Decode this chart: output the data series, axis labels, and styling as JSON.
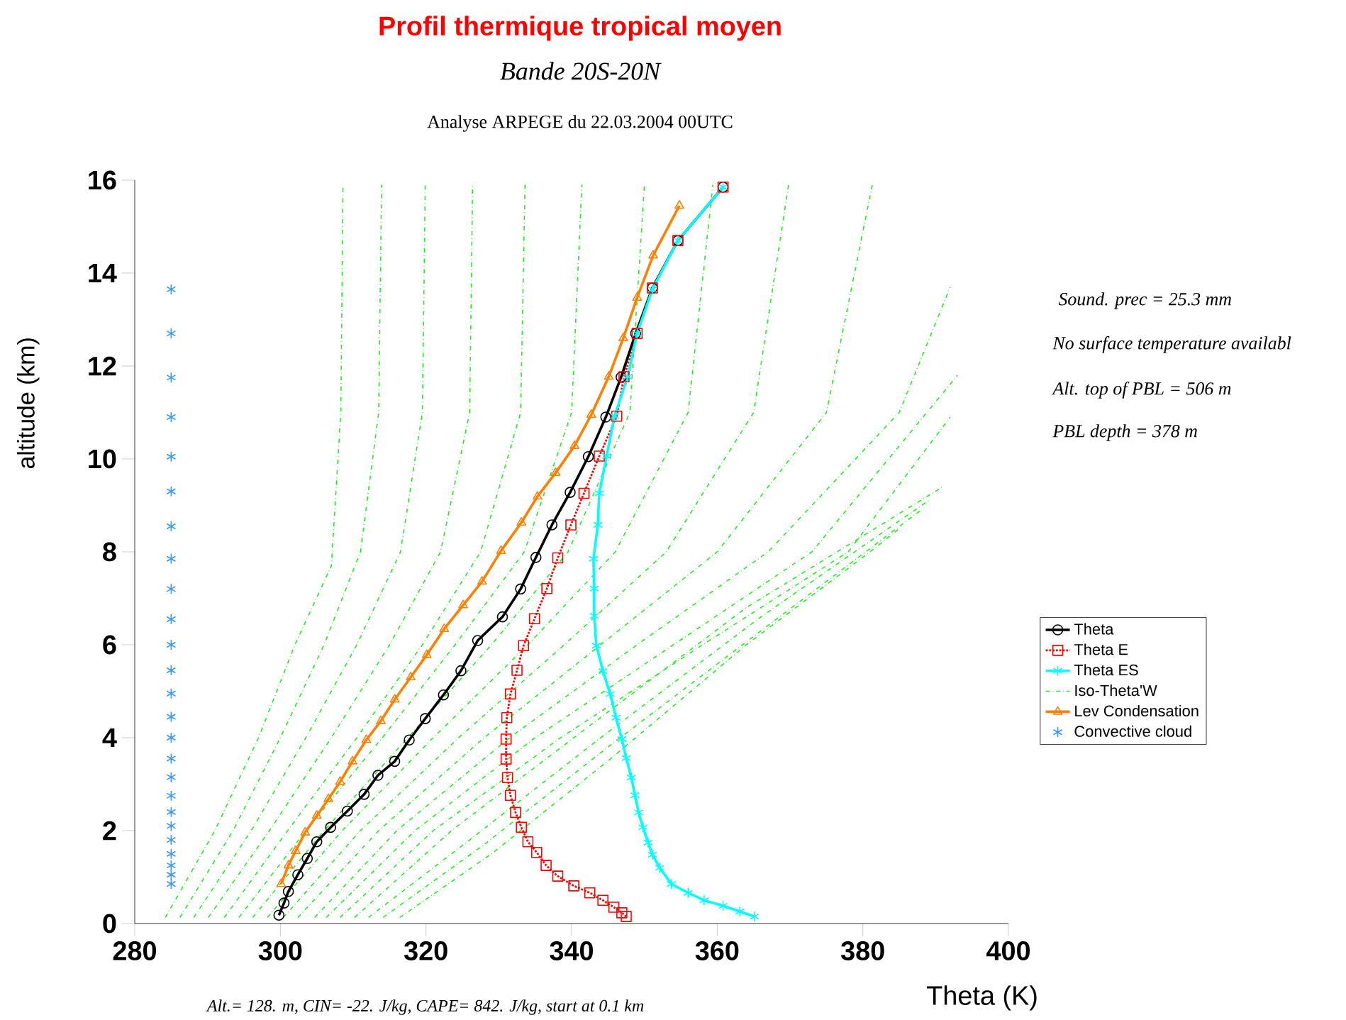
{
  "chart_data": {
    "type": "line",
    "title": "Profil thermique tropical moyen",
    "subtitle": "Bande 20S-20N",
    "xlabel": "Theta (K)",
    "ylabel": "altitude (km)",
    "annotations": [
      "Analyse ARPEGE du 22.03.2004 00UTC",
      "Sound. prec =  25.3 mm",
      "No surface temperature availabl",
      "Alt. top of PBL =   506 m",
      "PBL depth =   378 m",
      "Alt.= 128. m, CIN= -22. J/kg, CAPE= 842. J/kg, start at 0.1 km"
    ],
    "xlim": [
      280,
      400
    ],
    "xticks": [
      280,
      300,
      320,
      340,
      360,
      380,
      400
    ],
    "ylim": [
      0,
      16
    ],
    "yticks": [
      0,
      2,
      4,
      6,
      8,
      10,
      12,
      14,
      16
    ],
    "legend": "right",
    "series": [
      {
        "name": "Theta",
        "color": "#000000",
        "marker": "circle",
        "line_style": "solid",
        "x": [
          299.8,
          300.5,
          301.1,
          302.4,
          303.7,
          305,
          306.9,
          309.2,
          311.5,
          313.4,
          315.7,
          317.7,
          319.9,
          322.4,
          324.8,
          327.1,
          330.5,
          333,
          335.1,
          337.3,
          339.8,
          342.3,
          344.7,
          346.8,
          348.8,
          351.1,
          354.6,
          360.8
        ],
        "values": [
          0.18,
          0.44,
          0.69,
          1.05,
          1.4,
          1.76,
          2.07,
          2.42,
          2.78,
          3.19,
          3.49,
          3.95,
          4.41,
          4.92,
          5.44,
          6.09,
          6.6,
          7.2,
          7.88,
          8.58,
          9.28,
          10.05,
          10.9,
          11.76,
          12.7,
          13.68,
          14.7,
          15.85
        ]
      },
      {
        "name": "Theta E",
        "color": "#ff0000",
        "marker": "square",
        "line_style": "dotted",
        "x": [
          347.5,
          346.9,
          345.8,
          344.3,
          342.5,
          340.3,
          338.1,
          336.5,
          335.2,
          334,
          333.1,
          332.3,
          331.6,
          331.2,
          331,
          331,
          331.1,
          331.6,
          332.5,
          333.4,
          334.9,
          336.6,
          338.1,
          339.9,
          341.7,
          343.8,
          346.2,
          347.2,
          349,
          351.1,
          354.6,
          360.8
        ],
        "values": [
          0.15,
          0.23,
          0.35,
          0.5,
          0.66,
          0.81,
          1.02,
          1.25,
          1.53,
          1.76,
          2.07,
          2.39,
          2.76,
          3.14,
          3.54,
          3.97,
          4.43,
          4.94,
          5.45,
          5.98,
          6.56,
          7.21,
          7.87,
          8.58,
          9.26,
          10.06,
          10.92,
          11.77,
          12.7,
          13.68,
          14.7,
          15.85
        ]
      },
      {
        "name": "Theta ES",
        "color": "#00ffff",
        "marker": "cross",
        "line_style": "solid",
        "x": [
          365.1,
          363.1,
          360.8,
          358.2,
          356,
          353.7,
          352.1,
          351.1,
          350.5,
          349.8,
          349.2,
          348.7,
          348.2,
          347.5,
          346.9,
          346.1,
          345.3,
          344.3,
          343.4,
          343.1,
          343.1,
          343,
          343.6,
          343.8,
          344.8,
          345.9,
          347.7,
          349,
          351.1,
          354.6,
          360.8
        ],
        "values": [
          0.15,
          0.26,
          0.38,
          0.5,
          0.66,
          0.85,
          1.2,
          1.48,
          1.74,
          2.07,
          2.39,
          2.76,
          3.14,
          3.56,
          3.97,
          4.43,
          4.94,
          5.43,
          5.98,
          6.62,
          7.21,
          7.85,
          8.58,
          9.26,
          10.06,
          10.92,
          11.77,
          12.7,
          13.65,
          14.7,
          15.85
        ]
      },
      {
        "name": "Iso-Theta'W",
        "color": "#22ee22",
        "marker": "none",
        "line_style": "dashed",
        "x": [
          284.2,
          291,
          297,
          302,
          307,
          308.3,
          308.6
        ],
        "values": [
          0.13,
          2,
          4,
          6,
          7.7,
          11,
          15.9
        ]
      },
      {
        "name": "Lev Condensation",
        "color": "#ff8000",
        "marker": "triangle",
        "line_style": "solid",
        "x": [
          300.1,
          301.1,
          302.1,
          303.4,
          305,
          306.6,
          308.2,
          309.9,
          311.8,
          313.8,
          315.7,
          317.9,
          320.1,
          322.5,
          325.1,
          327.7,
          330.3,
          333.1,
          335.3,
          337.8,
          340.4,
          342.7,
          345.1,
          347.1,
          349,
          351.2,
          354.8
        ],
        "values": [
          0.85,
          1.25,
          1.56,
          1.96,
          2.32,
          2.68,
          3.05,
          3.49,
          3.95,
          4.36,
          4.82,
          5.3,
          5.78,
          6.34,
          6.85,
          7.36,
          8.02,
          8.63,
          9.19,
          9.7,
          10.28,
          10.95,
          11.77,
          12.6,
          13.47,
          14.38,
          15.45
        ]
      },
      {
        "name": "Convective cloud",
        "type": "scatter",
        "color": "#3399ff",
        "marker": "cross",
        "x": [
          285,
          285,
          285,
          285,
          285,
          285,
          285,
          285,
          285,
          285,
          285,
          285,
          285,
          285,
          285,
          285,
          285,
          285,
          285,
          285,
          285,
          285,
          285,
          285,
          285
        ],
        "values": [
          0.85,
          1.05,
          1.25,
          1.5,
          1.8,
          2.1,
          2.4,
          2.75,
          3.15,
          3.55,
          4.0,
          4.45,
          4.95,
          5.45,
          6.0,
          6.55,
          7.2,
          7.85,
          8.55,
          9.3,
          10.05,
          10.9,
          11.75,
          12.7,
          13.65
        ]
      },
      {
        "color": "#22ee22",
        "marker": "none",
        "line_style": "dashed",
        "x": [
          286.2,
          293.5,
          300,
          306,
          311,
          313.5,
          313.9
        ],
        "values": [
          0.13,
          2,
          4,
          6,
          8,
          11,
          15.9
        ]
      },
      {
        "color": "#22ee22",
        "marker": "none",
        "line_style": "dashed",
        "x": [
          288.1,
          296,
          303.5,
          310.5,
          316.5,
          319.5,
          319.9
        ],
        "values": [
          0.13,
          2,
          4,
          6,
          8,
          11,
          15.9
        ]
      },
      {
        "color": "#22ee22",
        "marker": "none",
        "line_style": "dashed",
        "x": [
          290.1,
          298.5,
          307,
          315,
          322,
          326,
          326.4
        ],
        "values": [
          0.13,
          2,
          4,
          6,
          8,
          11,
          15.9
        ]
      },
      {
        "color": "#22ee22",
        "marker": "none",
        "line_style": "dashed",
        "x": [
          292.3,
          301,
          310.5,
          319.5,
          327.5,
          333,
          333.6
        ],
        "values": [
          0.13,
          2,
          4,
          6,
          8,
          11,
          15.9
        ]
      },
      {
        "color": "#22ee22",
        "marker": "none",
        "line_style": "dashed",
        "x": [
          294.3,
          303.5,
          314,
          324,
          333.5,
          340,
          341.4
        ],
        "values": [
          0.13,
          2,
          4,
          6,
          8,
          11,
          15.9
        ]
      },
      {
        "color": "#22ee22",
        "marker": "none",
        "line_style": "dashed",
        "x": [
          296.2,
          306,
          317.5,
          329,
          339.5,
          348,
          350
        ],
        "values": [
          0.13,
          2,
          4,
          6,
          8,
          11,
          15.9
        ]
      },
      {
        "color": "#22ee22",
        "marker": "none",
        "line_style": "dashed",
        "x": [
          298.2,
          308.5,
          321,
          334,
          346,
          356,
          359.4
        ],
        "values": [
          0.13,
          2,
          4,
          6,
          8,
          11,
          15.9
        ]
      },
      {
        "color": "#22ee22",
        "marker": "none",
        "line_style": "dashed",
        "x": [
          300.4,
          311,
          324.5,
          339,
          353,
          365,
          369.8
        ],
        "values": [
          0.13,
          2,
          4,
          6,
          8,
          11,
          15.9
        ]
      },
      {
        "color": "#22ee22",
        "marker": "none",
        "line_style": "dashed",
        "x": [
          302.4,
          313.5,
          328,
          344,
          360,
          375,
          381.3
        ],
        "values": [
          0.13,
          2,
          4,
          6,
          8,
          11,
          15.9
        ]
      },
      {
        "color": "#22ee22",
        "marker": "none",
        "line_style": "dashed",
        "x": [
          304.7,
          316,
          331.5,
          349,
          367,
          385,
          392
        ],
        "values": [
          0.13,
          2,
          4,
          6,
          8,
          11,
          13.7
        ]
      },
      {
        "color": "#22ee22",
        "marker": "none",
        "line_style": "dashed",
        "x": [
          306.3,
          318.5,
          335,
          354,
          373,
          393
        ],
        "values": [
          0.13,
          2,
          4,
          6,
          8,
          11.8
        ]
      },
      {
        "color": "#22ee22",
        "marker": "none",
        "line_style": "dashed",
        "x": [
          308.2,
          321,
          338.5,
          358,
          378,
          392
        ],
        "values": [
          0.13,
          2,
          4,
          6,
          8,
          10.9
        ]
      },
      {
        "color": "#22ee22",
        "marker": "none",
        "line_style": "dashed",
        "x": [
          310.2,
          323.5,
          342,
          364,
          391
        ],
        "values": [
          0.13,
          2,
          4.2,
          6.8,
          9.4
        ]
      },
      {
        "color": "#22ee22",
        "marker": "none",
        "line_style": "dashed",
        "x": [
          312.1,
          326,
          344,
          366,
          389
        ],
        "values": [
          0.13,
          1.8,
          4,
          6.6,
          9.1
        ]
      },
      {
        "color": "#22ee22",
        "marker": "none",
        "line_style": "dashed",
        "x": [
          314.1,
          328,
          345,
          366,
          388
        ],
        "values": [
          0.13,
          1.7,
          3.8,
          6.3,
          8.9
        ]
      },
      {
        "color": "#22ee22",
        "marker": "none",
        "line_style": "dashed",
        "x": [
          316.4,
          329,
          345,
          364,
          381,
          385
        ],
        "values": [
          0.13,
          1.5,
          3.5,
          6,
          8,
          8.5
        ]
      }
    ]
  }
}
